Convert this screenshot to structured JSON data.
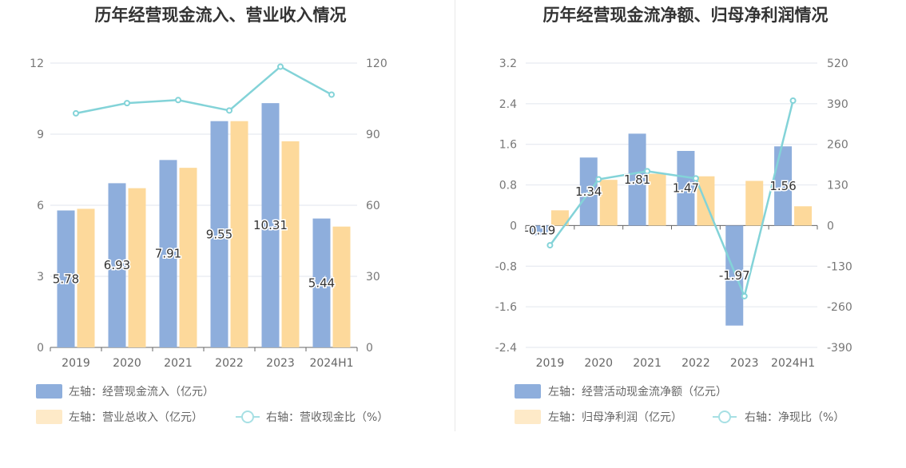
{
  "chart_data": [
    {
      "type": "bar",
      "title": "历年经营现金流入、营业收入情况",
      "categories": [
        "2019",
        "2020",
        "2021",
        "2022",
        "2023",
        "2024H1"
      ],
      "left_axis": {
        "ylim": [
          0,
          12
        ],
        "ticks": [
          "0",
          "3",
          "6",
          "9",
          "12"
        ]
      },
      "right_axis": {
        "ylim": [
          0,
          120
        ],
        "ticks": [
          "0",
          "30",
          "60",
          "90",
          "120"
        ]
      },
      "series": [
        {
          "name": "左轴：经营现金流入（亿元）",
          "kind": "bar",
          "axis": "left",
          "color": "#8eaedc",
          "values": [
            5.78,
            6.93,
            7.91,
            9.55,
            10.31,
            5.44
          ],
          "labels": [
            "5.78",
            "6.93",
            "7.91",
            "9.55",
            "10.31",
            "5.44"
          ]
        },
        {
          "name": "左轴：营业总收入（亿元）",
          "kind": "bar",
          "axis": "left",
          "color": "#fdd99b",
          "values": [
            5.85,
            6.72,
            7.58,
            9.55,
            8.7,
            5.1
          ]
        },
        {
          "name": "右轴：营收现金比（%）",
          "kind": "line",
          "axis": "right",
          "color": "#83d3d8",
          "values": [
            98.8,
            103.1,
            104.4,
            100.0,
            118.5,
            106.7
          ]
        }
      ],
      "legend": "bottom"
    },
    {
      "type": "bar",
      "title": "历年经营现金流净额、归母净利润情况",
      "categories": [
        "2019",
        "2020",
        "2021",
        "2022",
        "2023",
        "2024H1"
      ],
      "left_axis": {
        "ylim": [
          -2.4,
          3.2
        ],
        "ticks": [
          "-2.4",
          "-1.6",
          "-0.8",
          "0",
          "0.8",
          "1.6",
          "2.4",
          "3.2"
        ]
      },
      "right_axis": {
        "ylim": [
          -390,
          520
        ],
        "ticks": [
          "-390",
          "-260",
          "-130",
          "0",
          "130",
          "260",
          "390",
          "520"
        ]
      },
      "series": [
        {
          "name": "左轴：经营活动现金流净额（亿元）",
          "kind": "bar",
          "axis": "left",
          "color": "#8eaedc",
          "values": [
            -0.19,
            1.34,
            1.81,
            1.47,
            -1.97,
            1.56
          ],
          "labels": [
            "-0.19",
            "1.34",
            "1.81",
            "1.47",
            "-1.97",
            "1.56"
          ]
        },
        {
          "name": "左轴：归母净利润（亿元）",
          "kind": "bar",
          "axis": "left",
          "color": "#fdd99b",
          "values": [
            0.3,
            0.9,
            1.02,
            0.97,
            0.88,
            0.38
          ]
        },
        {
          "name": "右轴：净现比（%）",
          "kind": "line",
          "axis": "right",
          "color": "#83d3d8",
          "values": [
            -63,
            148,
            174,
            151,
            -226,
            400
          ]
        }
      ],
      "legend": "bottom"
    }
  ]
}
